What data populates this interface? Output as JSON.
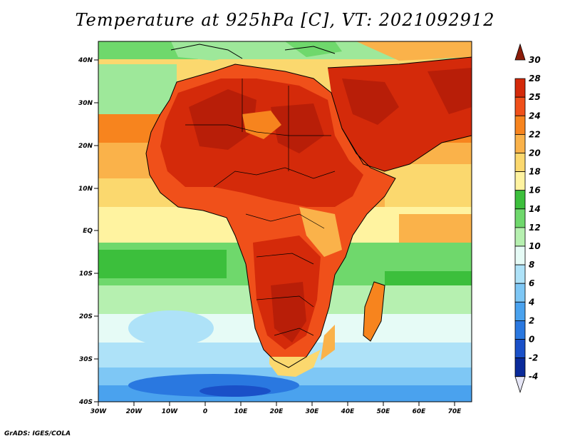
{
  "title": "Temperature at 925hPa [C], VT: 2021092912",
  "credit": "GrADS: IGES/COLA",
  "lon_labels": [
    "30W",
    "20W",
    "10W",
    "0",
    "10E",
    "20E",
    "30E",
    "40E",
    "50E",
    "60E",
    "70E"
  ],
  "lat_labels": [
    "40N",
    "30N",
    "20N",
    "10N",
    "EQ",
    "10S",
    "20S",
    "30S",
    "40S"
  ],
  "legend": [
    {
      "label": "30",
      "color": "#8c1c0a"
    },
    {
      "label": "28",
      "color": "#d42a0a"
    },
    {
      "label": "25",
      "color": "#f0501a"
    },
    {
      "label": "24",
      "color": "#f7841e"
    },
    {
      "label": "22",
      "color": "#fab24a"
    },
    {
      "label": "20",
      "color": "#fbd86e"
    },
    {
      "label": "18",
      "color": "#fff3a0"
    },
    {
      "label": "16",
      "color": "#3cbf3c"
    },
    {
      "label": "14",
      "color": "#6fd86c"
    },
    {
      "label": "12",
      "color": "#b6f0b0"
    },
    {
      "label": "10",
      "color": "#e6fbf6"
    },
    {
      "label": "8",
      "color": "#aee2f8"
    },
    {
      "label": "6",
      "color": "#7ec7f5"
    },
    {
      "label": "4",
      "color": "#4aa2ee"
    },
    {
      "label": "2",
      "color": "#2a78e0"
    },
    {
      "label": "0",
      "color": "#1a50c8"
    },
    {
      "label": "-2",
      "color": "#0a2a9a"
    },
    {
      "label": "-4",
      "color": "#e6e6f6"
    }
  ],
  "colors": {
    "ocean_north": "#9ee89a",
    "land_hot": "#d42a0a",
    "land_hotter": "#b81e08",
    "coastline": "#000000"
  }
}
